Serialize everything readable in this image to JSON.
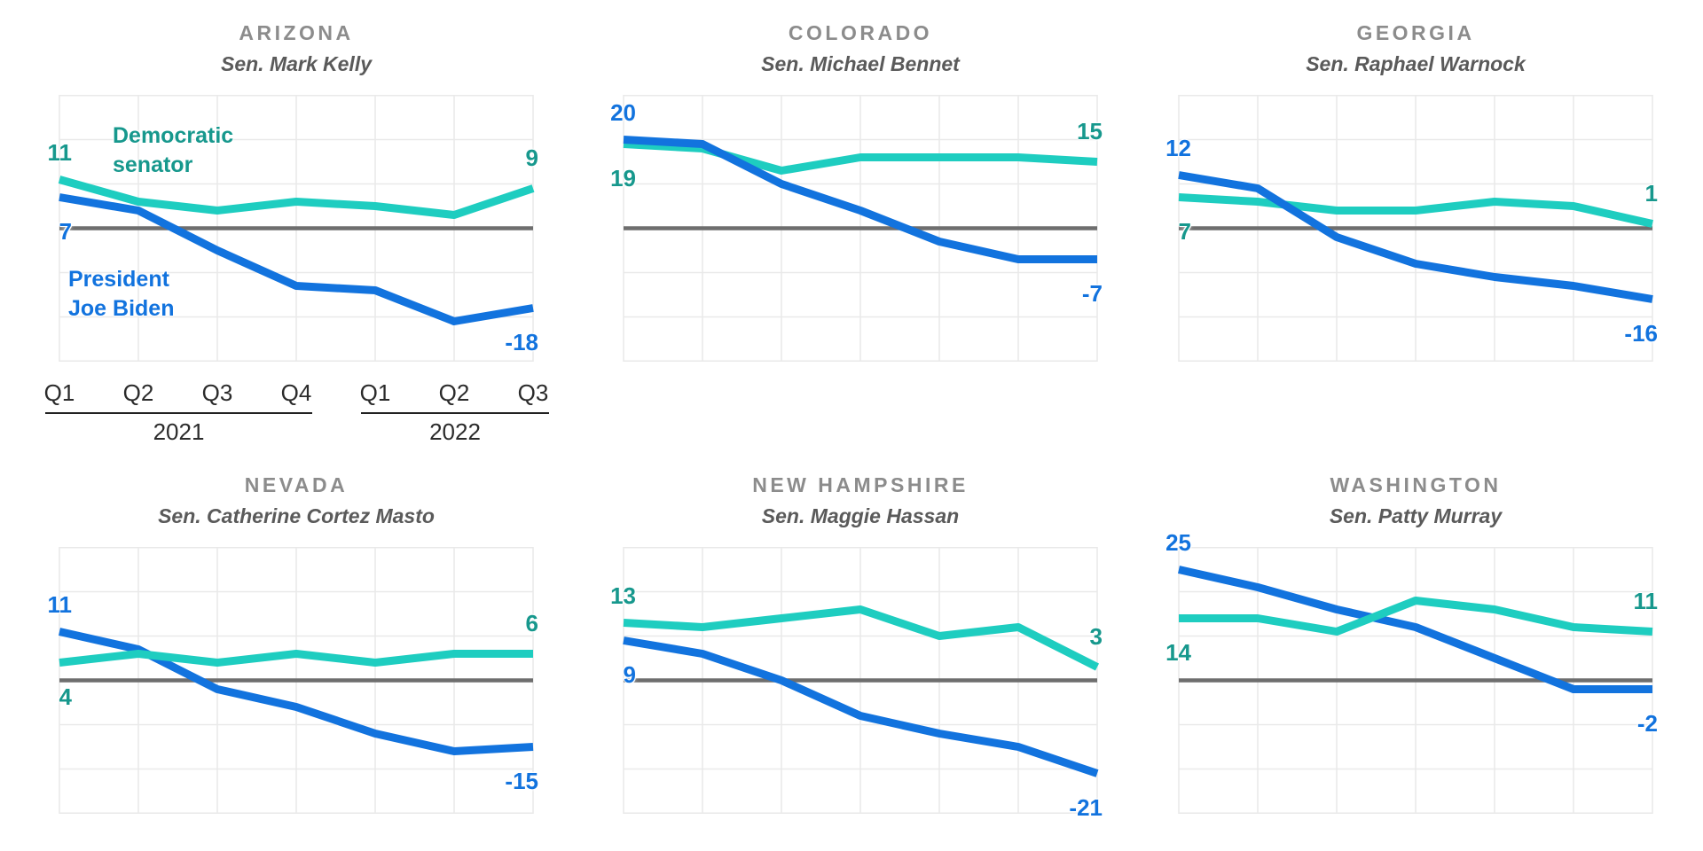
{
  "chart_data": {
    "type": "line",
    "x_axis": {
      "quarters": [
        "Q1",
        "Q2",
        "Q3",
        "Q4",
        "Q1",
        "Q2",
        "Q3"
      ],
      "year_groups": [
        {
          "label": "2021",
          "from": 0,
          "to": 3
        },
        {
          "label": "2022",
          "from": 4,
          "to": 6
        }
      ]
    },
    "ylim": [
      -30,
      30
    ],
    "zero_baseline": 0,
    "grid": true,
    "legend": {
      "senator": "Democratic\nsenator",
      "biden": "President\nJoe Biden"
    },
    "colors": {
      "senator_line": "#1ECDC0",
      "senator_label": "#17988D",
      "biden": "#1273DE",
      "grid": "#E9E9E9",
      "zero_line": "#6E6E6E",
      "title": "#8C8C8C",
      "subtitle": "#5A5A5A",
      "axis_text": "#2B2B2B",
      "year_bracket": "#222222"
    },
    "panels": [
      {
        "state": "ARIZONA",
        "senator_name": "Sen. Mark Kelly",
        "top_series": "senator",
        "series": [
          {
            "key": "senator",
            "name": "Democratic senator",
            "values": [
              11,
              6,
              4,
              6,
              5,
              3,
              9
            ],
            "start_label": "11",
            "end_label": "9",
            "start_side": "above",
            "end_side": "above"
          },
          {
            "key": "biden",
            "name": "President Joe Biden",
            "values": [
              7,
              4,
              -5,
              -13,
              -14,
              -21,
              -18
            ],
            "start_label": "7",
            "end_label": "-18",
            "start_side": "below",
            "end_side": "below"
          }
        ]
      },
      {
        "state": "COLORADO",
        "senator_name": "Sen. Michael Bennet",
        "top_series": "biden",
        "series": [
          {
            "key": "senator",
            "name": "Democratic senator",
            "values": [
              19,
              18,
              13,
              16,
              16,
              16,
              15
            ],
            "start_label": "19",
            "end_label": "15",
            "start_side": "below",
            "end_side": "above"
          },
          {
            "key": "biden",
            "name": "President Joe Biden",
            "values": [
              20,
              19,
              10,
              4,
              -3,
              -7,
              -7
            ],
            "start_label": "20",
            "end_label": "-7",
            "start_side": "above",
            "end_side": "below"
          }
        ]
      },
      {
        "state": "GEORGIA",
        "senator_name": "Sen. Raphael Warnock",
        "top_series": "biden",
        "series": [
          {
            "key": "senator",
            "name": "Democratic senator",
            "values": [
              7,
              6,
              4,
              4,
              6,
              5,
              1
            ],
            "start_label": "7",
            "end_label": "1",
            "start_side": "below",
            "end_side": "above"
          },
          {
            "key": "biden",
            "name": "President Joe Biden",
            "values": [
              12,
              9,
              -2,
              -8,
              -11,
              -13,
              -16
            ],
            "start_label": "12",
            "end_label": "-16",
            "start_side": "above",
            "end_side": "below"
          }
        ]
      },
      {
        "state": "NEVADA",
        "senator_name": "Sen. Catherine Cortez Masto",
        "top_series": "senator",
        "series": [
          {
            "key": "senator",
            "name": "Democratic senator",
            "values": [
              4,
              6,
              4,
              6,
              4,
              6,
              6
            ],
            "start_label": "4",
            "end_label": "6",
            "start_side": "below",
            "end_side": "above"
          },
          {
            "key": "biden",
            "name": "President Joe Biden",
            "values": [
              11,
              7,
              -2,
              -6,
              -12,
              -16,
              -15
            ],
            "start_label": "11",
            "end_label": "-15",
            "start_side": "above",
            "end_side": "below"
          }
        ]
      },
      {
        "state": "NEW HAMPSHIRE",
        "senator_name": "Sen. Maggie Hassan",
        "top_series": "senator",
        "series": [
          {
            "key": "senator",
            "name": "Democratic senator",
            "values": [
              13,
              12,
              14,
              16,
              10,
              12,
              3
            ],
            "start_label": "13",
            "end_label": "3",
            "start_side": "above",
            "end_side": "above"
          },
          {
            "key": "biden",
            "name": "President Joe Biden",
            "values": [
              9,
              6,
              0,
              -8,
              -12,
              -15,
              -21
            ],
            "start_label": "9",
            "end_label": "-21",
            "start_side": "below",
            "end_side": "below"
          }
        ]
      },
      {
        "state": "WASHINGTON",
        "senator_name": "Sen. Patty Murray",
        "top_series": "senator",
        "series": [
          {
            "key": "senator",
            "name": "Democratic senator",
            "values": [
              14,
              14,
              11,
              18,
              16,
              12,
              11
            ],
            "start_label": "14",
            "end_label": "11",
            "start_side": "below",
            "end_side": "above"
          },
          {
            "key": "biden",
            "name": "President Joe Biden",
            "values": [
              25,
              21,
              16,
              12,
              5,
              -2,
              -2
            ],
            "start_label": "25",
            "end_label": "-2",
            "start_side": "above",
            "end_side": "below"
          }
        ]
      }
    ]
  }
}
